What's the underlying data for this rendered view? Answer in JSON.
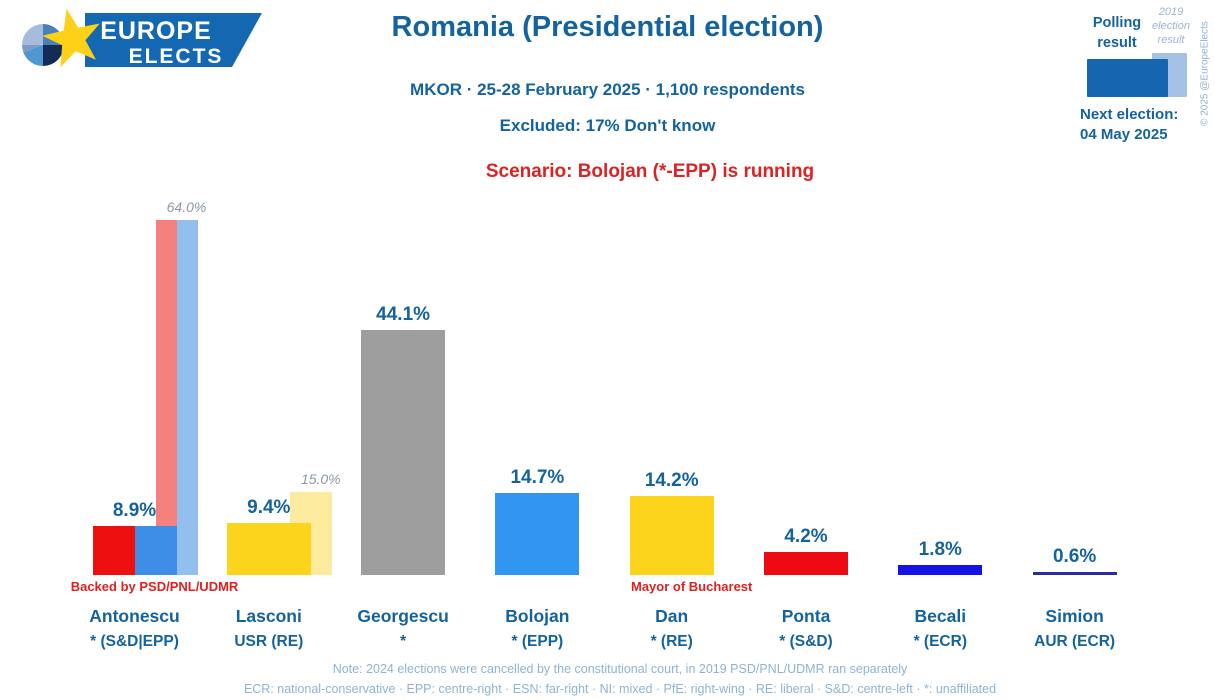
{
  "logo": {
    "line1": "EUROPE",
    "line2": "ELECTS"
  },
  "header": {
    "title": "Romania (Presidential election)",
    "poll_info": "MKOR · 25-28 February 2025 · 1,100 respondents",
    "excluded": "Excluded: 17% Don't know",
    "scenario": "Scenario: Bolojan (*-EPP) is running"
  },
  "legend": {
    "polling_label": "Polling\nresult",
    "prev_label": "2019\nelection\nresult",
    "next_election_label": "Next election:",
    "next_election_date": "04 May 2025",
    "copyright": "© 2025 @EuropeElects",
    "colors": {
      "polling": "#1565b0",
      "previous": "#a4c2e4"
    }
  },
  "chart_data": {
    "type": "bar",
    "unit": "%",
    "title": "Romania (Presidential election)",
    "series": [
      {
        "name": "Polling result"
      },
      {
        "name": "2019 election result"
      }
    ],
    "ylim": [
      0,
      64
    ],
    "grid": false,
    "candidates": [
      {
        "name": "Antonescu",
        "party": "* (S&D|EPP)",
        "value": 8.9,
        "label": "8.9%",
        "colors": [
          "#ee1010",
          "#3e8ee8"
        ],
        "previous": {
          "value": 64.0,
          "label": "64.0%",
          "colors": [
            "#f5817f",
            "#93bfee"
          ]
        },
        "annotation": "Backed by PSD/PNL/UDMR"
      },
      {
        "name": "Lasconi",
        "party": "USR (RE)",
        "value": 9.4,
        "label": "9.4%",
        "colors": [
          "#fdd41c"
        ],
        "previous": {
          "value": 15.0,
          "label": "15.0%",
          "colors": [
            "#fceb9f"
          ]
        }
      },
      {
        "name": "Georgescu",
        "party": "*",
        "value": 44.1,
        "label": "44.1%",
        "colors": [
          "#9e9e9e"
        ]
      },
      {
        "name": "Bolojan",
        "party": "* (EPP)",
        "value": 14.7,
        "label": "14.7%",
        "colors": [
          "#3096f0"
        ]
      },
      {
        "name": "Dan",
        "party": "* (RE)",
        "value": 14.2,
        "label": "14.2%",
        "colors": [
          "#fdd41c"
        ],
        "annotation": "Mayor of Bucharest"
      },
      {
        "name": "Ponta",
        "party": "* (S&D)",
        "value": 4.2,
        "label": "4.2%",
        "colors": [
          "#ee0a12"
        ]
      },
      {
        "name": "Becali",
        "party": "* (ECR)",
        "value": 1.8,
        "label": "1.8%",
        "colors": [
          "#1512e6"
        ]
      },
      {
        "name": "Simion",
        "party": "AUR (ECR)",
        "value": 0.6,
        "label": "0.6%",
        "colors": [
          "#2b2ba8"
        ]
      }
    ]
  },
  "footer": {
    "note": "Note: 2024 elections were cancelled by the constitutional court, in 2019 PSD/PNL/UDMR ran separately",
    "legend_line": "ECR: national-conservative · EPP: centre-right · ESN: far-right · NI: mixed · PfE: right-wing · RE: liberal · S&D: centre-left · *: unaffiliated"
  }
}
